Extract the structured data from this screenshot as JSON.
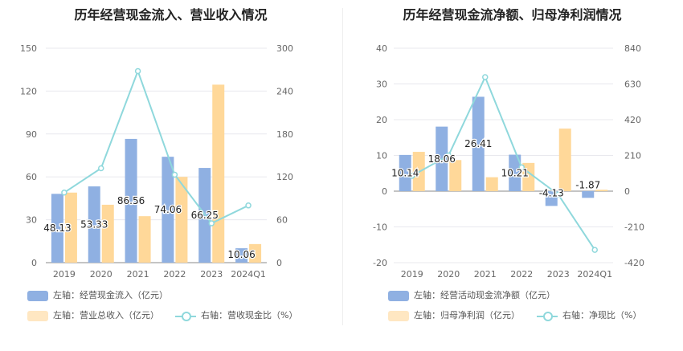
{
  "colors": {
    "bar_left": "#8fb0e2",
    "bar_right": "#ffd899",
    "line": "#8fd8dc",
    "grid": "#e8e8ee",
    "axis": "#666666"
  },
  "chart_data": [
    {
      "type": "bar",
      "title": "历年经营现金流入、营业收入情况",
      "categories": [
        "2019",
        "2020",
        "2021",
        "2022",
        "2023",
        "2024Q1"
      ],
      "left_axis": {
        "min": 0,
        "max": 150,
        "ticks": [
          "0",
          "30",
          "60",
          "90",
          "120",
          "150"
        ]
      },
      "right_axis": {
        "min": 0,
        "max": 300,
        "ticks": [
          "0",
          "60",
          "120",
          "180",
          "240",
          "300"
        ]
      },
      "series": [
        {
          "name": "左轴：经营现金流入（亿元）",
          "axis": "left",
          "type": "bar",
          "values": [
            48.13,
            53.33,
            86.56,
            74.06,
            66.25,
            10.06
          ],
          "labels": [
            "48.13",
            "53.33",
            "86.56",
            "74.06",
            "66.25",
            "10.06"
          ]
        },
        {
          "name": "左轴：营业总收入（亿元）",
          "axis": "left",
          "type": "bar",
          "values": [
            49,
            40.5,
            32.5,
            60,
            124.5,
            13
          ]
        },
        {
          "name": "右轴：营收现金比（%）",
          "axis": "right",
          "type": "line",
          "values": [
            98,
            132,
            268,
            123,
            55,
            80
          ]
        }
      ],
      "grid": true,
      "legend": "bottom"
    },
    {
      "type": "bar",
      "title": "历年经营现金流净额、归母净利润情况",
      "categories": [
        "2019",
        "2020",
        "2021",
        "2022",
        "2023",
        "2024Q1"
      ],
      "left_axis": {
        "min": -20,
        "max": 40,
        "ticks": [
          "-20",
          "-10",
          "0",
          "10",
          "20",
          "30",
          "40"
        ]
      },
      "right_axis": {
        "min": -420,
        "max": 840,
        "ticks": [
          "-420",
          "-210",
          "0",
          "210",
          "420",
          "630",
          "840"
        ]
      },
      "series": [
        {
          "name": "左轴：经营活动现金流净额（亿元）",
          "axis": "left",
          "type": "bar",
          "values": [
            10.14,
            18.06,
            26.41,
            10.21,
            -4.13,
            -1.87
          ],
          "labels": [
            "10.14",
            "18.06",
            "26.41",
            "10.21",
            "-4.13",
            "-1.87"
          ]
        },
        {
          "name": "左轴：归母净利润（亿元）",
          "axis": "left",
          "type": "bar",
          "values": [
            11,
            8.7,
            3.9,
            7.9,
            17.5,
            0.4
          ]
        },
        {
          "name": "右轴：净现比（%）",
          "axis": "right",
          "type": "line",
          "values": [
            90,
            210,
            670,
            140,
            -20,
            -345
          ]
        }
      ],
      "grid": true,
      "legend": "bottom"
    }
  ]
}
